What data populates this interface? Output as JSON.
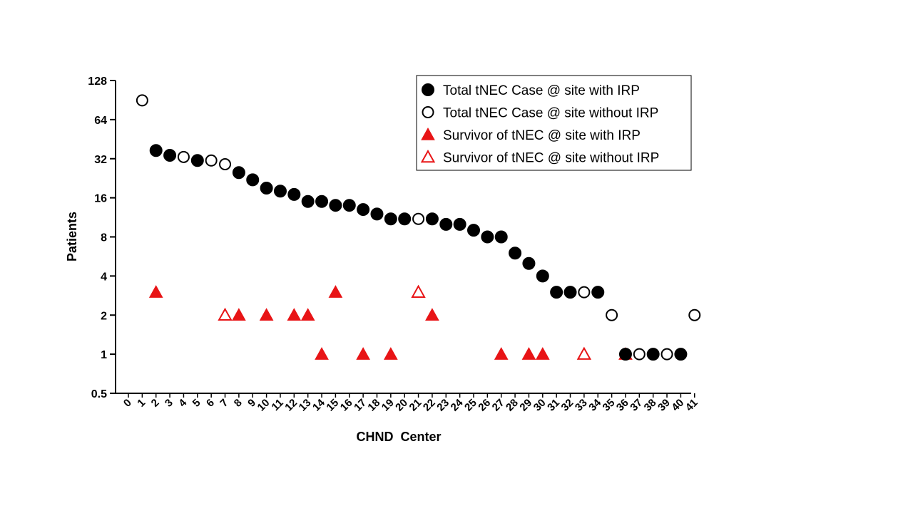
{
  "chart_data": {
    "type": "scatter",
    "title": "",
    "xlabel": "CHND  Center",
    "ylabel": "Patients",
    "y_scale": "log2",
    "ylim": [
      0.5,
      128
    ],
    "y_ticks": [
      0.5,
      1,
      2,
      4,
      8,
      16,
      32,
      64,
      128
    ],
    "y_tick_labels": [
      "0.5",
      "1",
      "2",
      "4",
      "8",
      "16",
      "32",
      "64",
      "128"
    ],
    "xlim": [
      0,
      41
    ],
    "x_ticks": [
      0,
      1,
      2,
      3,
      4,
      5,
      6,
      7,
      8,
      9,
      10,
      11,
      12,
      13,
      14,
      15,
      16,
      17,
      18,
      19,
      20,
      21,
      22,
      23,
      24,
      25,
      26,
      27,
      28,
      29,
      30,
      31,
      32,
      33,
      34,
      35,
      36,
      37,
      38,
      39,
      40,
      41
    ],
    "grid": false,
    "legend_position": "top-right",
    "colors": {
      "total": "#000000",
      "survivor": "#e81416"
    },
    "series": [
      {
        "name": "Total tNEC Case @ site with IRP",
        "marker": "circle-filled",
        "points": [
          [
            2,
            37
          ],
          [
            3,
            34
          ],
          [
            5,
            31
          ],
          [
            8,
            25
          ],
          [
            9,
            22
          ],
          [
            10,
            19
          ],
          [
            11,
            18
          ],
          [
            12,
            17
          ],
          [
            13,
            15
          ],
          [
            14,
            15
          ],
          [
            15,
            14
          ],
          [
            16,
            14
          ],
          [
            17,
            13
          ],
          [
            18,
            12
          ],
          [
            19,
            11
          ],
          [
            20,
            11
          ],
          [
            22,
            11
          ],
          [
            23,
            10
          ],
          [
            24,
            10
          ],
          [
            25,
            9
          ],
          [
            26,
            8
          ],
          [
            27,
            8
          ],
          [
            28,
            6
          ],
          [
            29,
            5
          ],
          [
            30,
            4
          ],
          [
            31,
            3
          ],
          [
            32,
            3
          ],
          [
            34,
            3
          ],
          [
            36,
            1
          ],
          [
            38,
            1
          ],
          [
            40,
            1
          ]
        ]
      },
      {
        "name": "Total tNEC Case @ site without IRP",
        "marker": "circle-open",
        "points": [
          [
            1,
            90
          ],
          [
            4,
            33
          ],
          [
            6,
            31
          ],
          [
            7,
            29
          ],
          [
            21,
            11
          ],
          [
            33,
            3
          ],
          [
            35,
            2
          ],
          [
            37,
            1
          ],
          [
            39,
            1
          ],
          [
            41,
            2
          ]
        ]
      },
      {
        "name": "Survivor of tNEC @ site with IRP",
        "marker": "triangle-filled",
        "points": [
          [
            2,
            3
          ],
          [
            8,
            2
          ],
          [
            10,
            2
          ],
          [
            12,
            2
          ],
          [
            13,
            2
          ],
          [
            14,
            1
          ],
          [
            15,
            3
          ],
          [
            17,
            1
          ],
          [
            19,
            1
          ],
          [
            22,
            2
          ],
          [
            27,
            1
          ],
          [
            29,
            1
          ],
          [
            30,
            1
          ],
          [
            36,
            1
          ]
        ]
      },
      {
        "name": "Survivor of tNEC @ site without IRP",
        "marker": "triangle-open",
        "points": [
          [
            7,
            2
          ],
          [
            21,
            3
          ],
          [
            33,
            1
          ]
        ]
      }
    ]
  }
}
